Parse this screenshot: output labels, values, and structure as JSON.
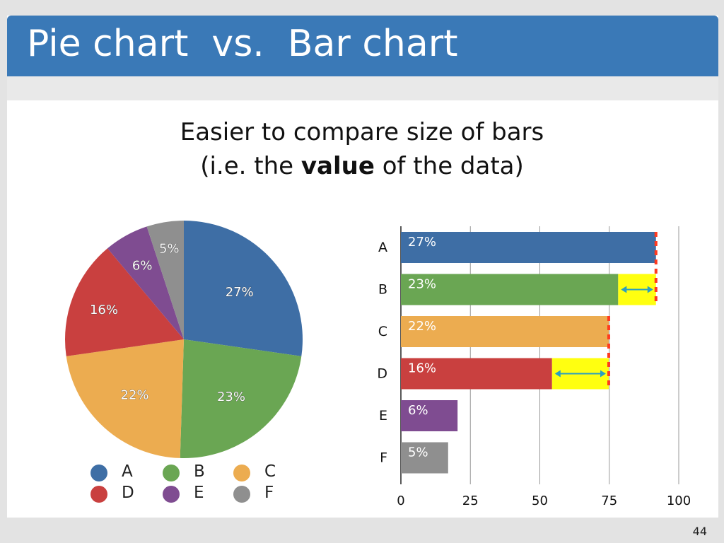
{
  "slide": {
    "title": "Pie chart  vs.  Bar chart",
    "subtitle_line1": "Easier to compare size of bars",
    "subtitle_line2_pre": "(i.e. the ",
    "subtitle_line2_bold": "value",
    "subtitle_line2_post": " of the data)",
    "page_number": "44"
  },
  "colors": {
    "A": "#3e6ea5",
    "B": "#6aa653",
    "C": "#ecac50",
    "D": "#c9403f",
    "E": "#7f4c91",
    "F": "#8f8f8f",
    "highlight": "#ffff10",
    "marker": "#ff3a1f",
    "arrow": "#2a9fc0",
    "title_bar": "#3a79b7"
  },
  "chart_data": [
    {
      "type": "pie",
      "categories": [
        "A",
        "B",
        "C",
        "D",
        "E",
        "F"
      ],
      "values": [
        27,
        23,
        22,
        16,
        6,
        5
      ],
      "labels": [
        "27%",
        "23%",
        "22%",
        "16%",
        "6%",
        "5%"
      ],
      "legend": [
        "A",
        "B",
        "C",
        "D",
        "E",
        "F"
      ],
      "legend_placement": "bottom"
    },
    {
      "type": "bar",
      "orientation": "horizontal",
      "categories": [
        "A",
        "B",
        "C",
        "D",
        "E",
        "F"
      ],
      "values": [
        27,
        23,
        22,
        16,
        6,
        5
      ],
      "labels": [
        "27%",
        "23%",
        "22%",
        "16%",
        "6%",
        "5%"
      ],
      "xlim": [
        0,
        100
      ],
      "xticks": [
        "0",
        "25",
        "50",
        "75",
        "100"
      ],
      "grid": true,
      "comparison_annotations": [
        {
          "bar": "B",
          "compared_to": "A"
        },
        {
          "bar": "D",
          "compared_to": "C"
        }
      ]
    }
  ]
}
